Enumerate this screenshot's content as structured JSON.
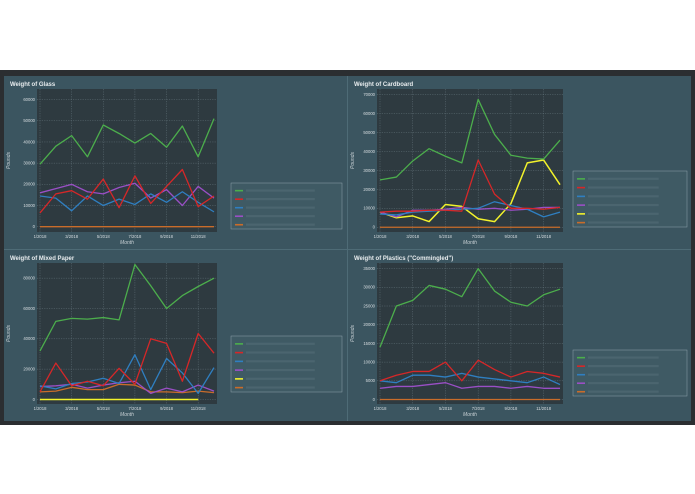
{
  "colors": {
    "panel_bg": "#3b5560",
    "plot_bg": "#2e3a40",
    "grid": "#6f8088",
    "series": {
      "red": "#d62728",
      "blue": "#2f7fc1",
      "green": "#4cae4c",
      "purple": "#9a4fc6",
      "orange": "#c96c2a",
      "yellow": "#f2f22b"
    }
  },
  "chart_data": [
    {
      "type": "line",
      "title": "Weight of Glass",
      "xlabel": "Month",
      "ylabel": "Pounds",
      "x_ticks": [
        "1/2018",
        "3/2018",
        "5/2018",
        "7/2018",
        "9/2018",
        "11/2018"
      ],
      "y_ticks": [
        "0",
        "10000",
        "20000",
        "30000",
        "40000",
        "50000",
        "60000"
      ],
      "ylim": [
        -2500,
        65000
      ],
      "grid": true,
      "legend_placement": "right",
      "categories": [
        "1/2018",
        "2/2018",
        "3/2018",
        "4/2018",
        "5/2018",
        "6/2018",
        "7/2018",
        "8/2018",
        "9/2018",
        "10/2018",
        "11/2018",
        "12/2018"
      ],
      "series": [
        {
          "color_key": "green",
          "values": [
            29500,
            38000,
            43000,
            33000,
            48000,
            44000,
            39500,
            44000,
            37500,
            47500,
            33000,
            51000
          ]
        },
        {
          "color_key": "red",
          "values": [
            6500,
            15500,
            17000,
            13000,
            22500,
            9000,
            24000,
            11000,
            19000,
            27000,
            9500,
            14500
          ]
        },
        {
          "color_key": "blue",
          "values": [
            14500,
            13500,
            7500,
            14500,
            10000,
            13000,
            10500,
            15500,
            11500,
            16500,
            11500,
            7000
          ]
        },
        {
          "color_key": "purple",
          "values": [
            16000,
            18000,
            20000,
            16500,
            15500,
            18500,
            20500,
            13500,
            17500,
            10000,
            19000,
            13500
          ]
        },
        {
          "color_key": "orange",
          "values": [
            0,
            0,
            0,
            0,
            0,
            0,
            0,
            0,
            0,
            0,
            0,
            0
          ]
        }
      ]
    },
    {
      "type": "line",
      "title": "Weight of Cardboard",
      "xlabel": "Month",
      "ylabel": "Pounds",
      "x_ticks": [
        "1/2018",
        "3/2018",
        "5/2018",
        "7/2018",
        "9/2018",
        "11/2018"
      ],
      "y_ticks": [
        "0",
        "10000",
        "20000",
        "30000",
        "40000",
        "50000",
        "60000",
        "70000"
      ],
      "ylim": [
        -2500,
        73000
      ],
      "grid": true,
      "legend_placement": "right",
      "categories": [
        "1/2018",
        "2/2018",
        "3/2018",
        "4/2018",
        "5/2018",
        "6/2018",
        "7/2018",
        "8/2018",
        "9/2018",
        "10/2018",
        "11/2018",
        "12/2018"
      ],
      "series": [
        {
          "color_key": "green",
          "values": [
            25000,
            26500,
            35000,
            41500,
            37500,
            34000,
            67500,
            49000,
            38000,
            36500,
            36000,
            46000
          ]
        },
        {
          "color_key": "red",
          "values": [
            8000,
            8500,
            8500,
            9000,
            9000,
            8500,
            35500,
            17500,
            10000,
            10000,
            9500,
            10500
          ]
        },
        {
          "color_key": "blue",
          "values": [
            7000,
            6500,
            8000,
            8500,
            9000,
            9500,
            10000,
            13500,
            11500,
            9500,
            5500,
            8000
          ]
        },
        {
          "color_key": "purple",
          "values": [
            8000,
            5500,
            9000,
            9000,
            9500,
            10500,
            9500,
            10000,
            9000,
            9500,
            10500,
            10500
          ]
        },
        {
          "color_key": "yellow",
          "values": [
            8000,
            5000,
            6000,
            3000,
            12000,
            11000,
            4500,
            3000,
            12500,
            34000,
            35500,
            22500
          ]
        },
        {
          "color_key": "orange",
          "values": [
            0,
            0,
            0,
            0,
            0,
            0,
            0,
            0,
            0,
            0,
            0,
            0
          ]
        }
      ]
    },
    {
      "type": "line",
      "title": "Weight of Mixed Paper",
      "xlabel": "Month",
      "ylabel": "Pounds",
      "x_ticks": [
        "1/2018",
        "3/2018",
        "5/2018",
        "7/2018",
        "9/2018",
        "11/2018"
      ],
      "y_ticks": [
        "0",
        "20000",
        "40000",
        "60000",
        "80000"
      ],
      "ylim": [
        -3000,
        90000
      ],
      "grid": true,
      "legend_placement": "right",
      "categories": [
        "1/2018",
        "2/2018",
        "3/2018",
        "4/2018",
        "5/2018",
        "6/2018",
        "7/2018",
        "8/2018",
        "9/2018",
        "10/2018",
        "11/2018",
        "12/2018"
      ],
      "series": [
        {
          "color_key": "green",
          "values": [
            32000,
            51500,
            53500,
            53000,
            54000,
            52500,
            89000,
            75000,
            60000,
            68500,
            74500,
            80000
          ]
        },
        {
          "color_key": "red",
          "values": [
            5000,
            24000,
            9000,
            12000,
            9000,
            20500,
            10000,
            40000,
            37000,
            12000,
            43500,
            30500
          ]
        },
        {
          "color_key": "blue",
          "values": [
            9000,
            7000,
            10500,
            11500,
            14000,
            10500,
            29500,
            6500,
            27000,
            17500,
            4000,
            21000
          ]
        },
        {
          "color_key": "purple",
          "values": [
            8500,
            9000,
            10000,
            7500,
            9500,
            11000,
            12000,
            4000,
            7500,
            5000,
            9500,
            5500
          ]
        },
        {
          "color_key": "orange",
          "values": [
            5000,
            5500,
            8000,
            6500,
            6500,
            10000,
            9500,
            5000,
            5000,
            4500,
            5500,
            4500
          ]
        },
        {
          "color_key": "yellow",
          "values": [
            0,
            0,
            0,
            0,
            0,
            0,
            0,
            0,
            0,
            0,
            0,
            null
          ]
        }
      ]
    },
    {
      "type": "line",
      "title": "Weight of Plastics (\"Commingled\")",
      "xlabel": "Month",
      "ylabel": "Pounds",
      "x_ticks": [
        "1/2018",
        "3/2018",
        "5/2018",
        "7/2018",
        "9/2018",
        "11/2018"
      ],
      "y_ticks": [
        "0",
        "5000",
        "10000",
        "15000",
        "20000",
        "25000",
        "30000",
        "35000"
      ],
      "ylim": [
        -1200,
        36500
      ],
      "grid": true,
      "legend_placement": "right",
      "categories": [
        "1/2018",
        "2/2018",
        "3/2018",
        "4/2018",
        "5/2018",
        "6/2018",
        "7/2018",
        "8/2018",
        "9/2018",
        "10/2018",
        "11/2018",
        "12/2018"
      ],
      "series": [
        {
          "color_key": "green",
          "values": [
            14000,
            25000,
            26500,
            30500,
            29500,
            27500,
            35000,
            29000,
            26000,
            25000,
            28000,
            29500
          ]
        },
        {
          "color_key": "red",
          "values": [
            5000,
            6500,
            7500,
            7500,
            10000,
            5000,
            10500,
            8000,
            6000,
            7500,
            7000,
            6000
          ]
        },
        {
          "color_key": "blue",
          "values": [
            5000,
            4500,
            6500,
            6500,
            6000,
            7000,
            6000,
            5500,
            5000,
            4500,
            6000,
            4000
          ]
        },
        {
          "color_key": "purple",
          "values": [
            3000,
            3500,
            3500,
            4000,
            4500,
            3000,
            3500,
            3500,
            3000,
            3500,
            3000,
            3000
          ]
        },
        {
          "color_key": "orange",
          "values": [
            0,
            0,
            0,
            0,
            0,
            0,
            0,
            0,
            0,
            0,
            0,
            0
          ]
        }
      ]
    }
  ]
}
